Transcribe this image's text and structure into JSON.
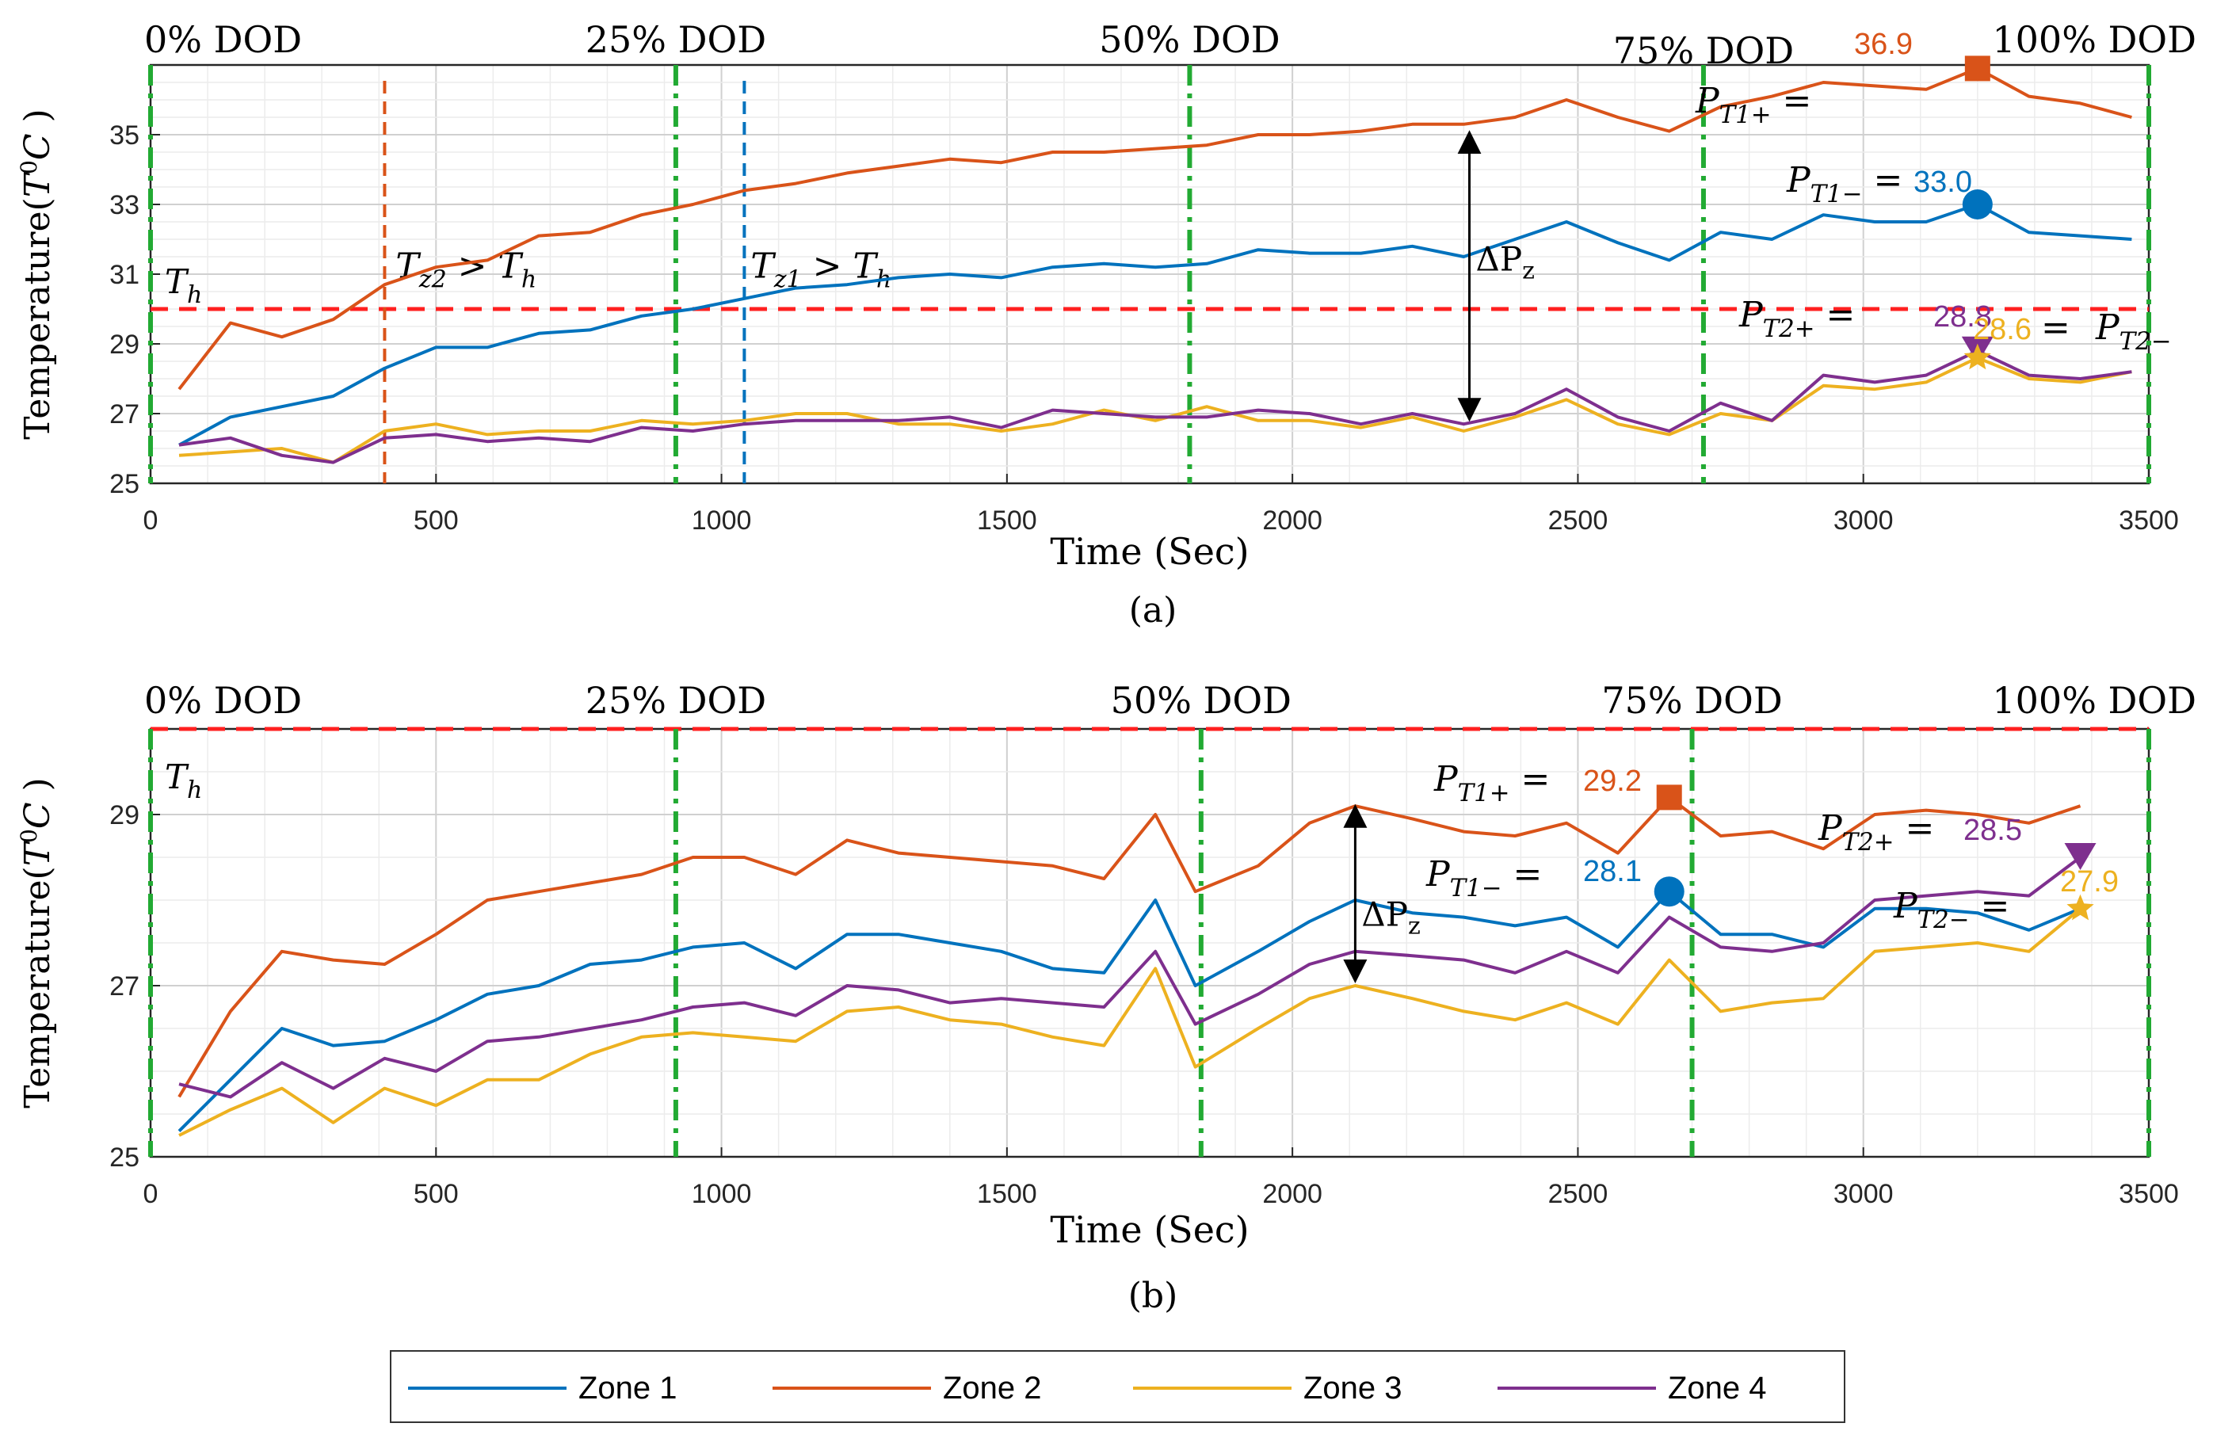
{
  "colors": {
    "zone1": "#0072BD",
    "zone2": "#D95319",
    "zone3": "#EDB120",
    "zone4": "#7E2F8E",
    "threshold": "#FF2020",
    "dod": "#22AA33",
    "grid": "#d9d9d9"
  },
  "legend": {
    "items": [
      {
        "label": "Zone 1",
        "color": "#0072BD"
      },
      {
        "label": "Zone 2",
        "color": "#D95319"
      },
      {
        "label": "Zone 3",
        "color": "#EDB120"
      },
      {
        "label": "Zone 4",
        "color": "#7E2F8E"
      }
    ]
  },
  "chart_data": [
    {
      "type": "line",
      "panel": "(a)",
      "caption": "(a)",
      "xlabel": "Time (Sec)",
      "ylabel": "Temperature(T°C )",
      "ylabel_parts": {
        "pre": "Temperature(",
        "T": "T",
        "sup": "0",
        "C": "C",
        "post": " )"
      },
      "xlim": [
        0,
        3500
      ],
      "ylim": [
        25,
        37
      ],
      "xticks": [
        0,
        500,
        1000,
        1500,
        2000,
        2500,
        3000,
        3500
      ],
      "yticks": [
        25,
        27,
        29,
        31,
        33,
        35
      ],
      "grid": true,
      "threshold": {
        "value": 30,
        "label": "T",
        "sub": "h"
      },
      "dod_lines": [
        0,
        920,
        1820,
        2720,
        3500
      ],
      "dod_labels": [
        {
          "text": "0% DOD",
          "x": 0
        },
        {
          "text": "25% DOD",
          "x": 920
        },
        {
          "text": "50% DOD",
          "x": 1820
        },
        {
          "text": "75% DOD",
          "x": 2720
        },
        {
          "text": "100% DOD",
          "x": 3500
        }
      ],
      "events": [
        {
          "x": 410,
          "color": "#D95319",
          "label": "T",
          "sub": "z2",
          "rest": " > T",
          "sub2": "h"
        },
        {
          "x": 1040,
          "color": "#0072BD",
          "label": "T",
          "sub": "z1",
          "rest": " > T",
          "sub2": "h"
        }
      ],
      "delta": {
        "x": 2310,
        "y_top": 35.2,
        "y_bottom": 26.7,
        "label": "ΔP",
        "sub": "z"
      },
      "x": [
        50,
        140,
        230,
        320,
        410,
        500,
        590,
        680,
        770,
        860,
        950,
        1040,
        1130,
        1220,
        1310,
        1400,
        1490,
        1580,
        1670,
        1760,
        1850,
        1940,
        2030,
        2120,
        2210,
        2300,
        2390,
        2480,
        2570,
        2660,
        2750,
        2840,
        2930,
        3020,
        3110,
        3200,
        3290,
        3380,
        3470
      ],
      "series": [
        {
          "name": "Zone 1",
          "color": "#0072BD",
          "values": [
            26.1,
            26.9,
            27.2,
            27.5,
            28.3,
            28.9,
            28.9,
            29.3,
            29.4,
            29.8,
            30.0,
            30.3,
            30.6,
            30.7,
            30.9,
            31.0,
            30.9,
            31.2,
            31.3,
            31.2,
            31.3,
            31.7,
            31.6,
            31.6,
            31.8,
            31.5,
            32.0,
            32.5,
            31.9,
            31.4,
            32.2,
            32.0,
            32.7,
            32.5,
            32.5,
            33.0,
            32.2,
            32.1,
            32.0
          ]
        },
        {
          "name": "Zone 2",
          "color": "#D95319",
          "values": [
            27.7,
            29.6,
            29.2,
            29.7,
            30.7,
            31.2,
            31.4,
            32.1,
            32.2,
            32.7,
            33.0,
            33.4,
            33.6,
            33.9,
            34.1,
            34.3,
            34.2,
            34.5,
            34.5,
            34.6,
            34.7,
            35.0,
            35.0,
            35.1,
            35.3,
            35.3,
            35.5,
            36.0,
            35.5,
            35.1,
            35.8,
            36.1,
            36.5,
            36.4,
            36.3,
            36.9,
            36.1,
            35.9,
            35.5
          ]
        },
        {
          "name": "Zone 3",
          "color": "#EDB120",
          "values": [
            25.8,
            25.9,
            26.0,
            25.6,
            26.5,
            26.7,
            26.4,
            26.5,
            26.5,
            26.8,
            26.7,
            26.8,
            27.0,
            27.0,
            26.7,
            26.7,
            26.5,
            26.7,
            27.1,
            26.8,
            27.2,
            26.8,
            26.8,
            26.6,
            26.9,
            26.5,
            26.9,
            27.4,
            26.7,
            26.4,
            27.0,
            26.8,
            27.8,
            27.7,
            27.9,
            28.6,
            28.0,
            27.9,
            28.2
          ]
        },
        {
          "name": "Zone 4",
          "color": "#7E2F8E",
          "values": [
            26.1,
            26.3,
            25.8,
            25.6,
            26.3,
            26.4,
            26.2,
            26.3,
            26.2,
            26.6,
            26.5,
            26.7,
            26.8,
            26.8,
            26.8,
            26.9,
            26.6,
            27.1,
            27.0,
            26.9,
            26.9,
            27.1,
            27.0,
            26.7,
            27.0,
            26.7,
            27.0,
            27.7,
            26.9,
            26.5,
            27.3,
            26.8,
            28.1,
            27.9,
            28.1,
            28.8,
            28.1,
            28.0,
            28.2
          ]
        }
      ],
      "points": [
        {
          "name": "P_T1+",
          "series": "Zone 2",
          "x": 3200,
          "y": 36.9,
          "value": "36.9",
          "marker": "square",
          "color": "#D95319",
          "label_main": "P",
          "label_sub": "T1+",
          "eq": " ="
        },
        {
          "name": "P_T1-",
          "series": "Zone 1",
          "x": 3200,
          "y": 33.0,
          "value": "33.0",
          "marker": "circle",
          "color": "#0072BD",
          "label_main": "P",
          "label_sub": "T1−",
          "eq": " ="
        },
        {
          "name": "P_T2+",
          "series": "Zone 4",
          "x": 3200,
          "y": 28.8,
          "value": "28.8",
          "marker": "triangle-down",
          "color": "#7E2F8E",
          "label_main": "P",
          "label_sub": "T2+",
          "eq": " ="
        },
        {
          "name": "P_T2-",
          "series": "Zone 3",
          "x": 3200,
          "y": 28.6,
          "value": "28.6",
          "marker": "star",
          "color": "#EDB120",
          "label_main": "P",
          "label_sub": "T2−",
          "eq": "= "
        }
      ]
    },
    {
      "type": "line",
      "panel": "(b)",
      "caption": "(b)",
      "xlabel": "Time (Sec)",
      "ylabel": "Temperature(T°C )",
      "ylabel_parts": {
        "pre": "Temperature(",
        "T": "T",
        "sup": "0",
        "C": "C",
        "post": " )"
      },
      "xlim": [
        0,
        3500
      ],
      "ylim": [
        25,
        30
      ],
      "xticks": [
        0,
        500,
        1000,
        1500,
        2000,
        2500,
        3000,
        3500
      ],
      "yticks": [
        25,
        27,
        29
      ],
      "grid": true,
      "threshold": {
        "value": 30,
        "label": "T",
        "sub": "h"
      },
      "dod_lines": [
        0,
        920,
        1840,
        2700,
        3500
      ],
      "dod_labels": [
        {
          "text": "0% DOD",
          "x": 0
        },
        {
          "text": "25% DOD",
          "x": 920
        },
        {
          "text": "50% DOD",
          "x": 1840
        },
        {
          "text": "75% DOD",
          "x": 2700
        },
        {
          "text": "100% DOD",
          "x": 3500
        }
      ],
      "delta": {
        "x": 2110,
        "y_top": 29.15,
        "y_bottom": 27.0,
        "label": "ΔP",
        "sub": "z"
      },
      "x": [
        50,
        140,
        230,
        320,
        410,
        500,
        590,
        680,
        770,
        860,
        950,
        1040,
        1130,
        1220,
        1310,
        1400,
        1490,
        1580,
        1670,
        1760,
        1830,
        1940,
        2030,
        2110,
        2210,
        2300,
        2390,
        2480,
        2570,
        2660,
        2750,
        2840,
        2930,
        3020,
        3110,
        3200,
        3290,
        3380
      ],
      "series": [
        {
          "name": "Zone 1",
          "color": "#0072BD",
          "values": [
            25.3,
            25.9,
            26.5,
            26.3,
            26.35,
            26.6,
            26.9,
            27.0,
            27.25,
            27.3,
            27.45,
            27.5,
            27.2,
            27.6,
            27.6,
            27.5,
            27.4,
            27.2,
            27.15,
            28.0,
            27.0,
            27.4,
            27.75,
            28.0,
            27.85,
            27.8,
            27.7,
            27.8,
            27.45,
            28.1,
            27.6,
            27.6,
            27.45,
            27.9,
            27.9,
            27.85,
            27.65,
            27.9
          ]
        },
        {
          "name": "Zone 2",
          "color": "#D95319",
          "values": [
            25.7,
            26.7,
            27.4,
            27.3,
            27.25,
            27.6,
            28.0,
            28.1,
            28.2,
            28.3,
            28.5,
            28.5,
            28.3,
            28.7,
            28.55,
            28.5,
            28.45,
            28.4,
            28.25,
            29.0,
            28.1,
            28.4,
            28.9,
            29.1,
            28.95,
            28.8,
            28.75,
            28.9,
            28.55,
            29.2,
            28.75,
            28.8,
            28.6,
            29.0,
            29.05,
            29.0,
            28.9,
            29.1
          ]
        },
        {
          "name": "Zone 3",
          "color": "#EDB120",
          "values": [
            25.25,
            25.55,
            25.8,
            25.4,
            25.8,
            25.6,
            25.9,
            25.9,
            26.2,
            26.4,
            26.45,
            26.4,
            26.35,
            26.7,
            26.75,
            26.6,
            26.55,
            26.4,
            26.3,
            27.2,
            26.05,
            26.5,
            26.85,
            27.0,
            26.85,
            26.7,
            26.6,
            26.8,
            26.55,
            27.3,
            26.7,
            26.8,
            26.85,
            27.4,
            27.45,
            27.5,
            27.4,
            27.9
          ]
        },
        {
          "name": "Zone 4",
          "color": "#7E2F8E",
          "values": [
            25.85,
            25.7,
            26.1,
            25.8,
            26.15,
            26.0,
            26.35,
            26.4,
            26.5,
            26.6,
            26.75,
            26.8,
            26.65,
            27.0,
            26.95,
            26.8,
            26.85,
            26.8,
            26.75,
            27.4,
            26.55,
            26.9,
            27.25,
            27.4,
            27.35,
            27.3,
            27.15,
            27.4,
            27.15,
            27.8,
            27.45,
            27.4,
            27.5,
            28.0,
            28.05,
            28.1,
            28.05,
            28.5
          ]
        }
      ],
      "points": [
        {
          "name": "P_T1+",
          "series": "Zone 2",
          "x": 2660,
          "y": 29.2,
          "value": "29.2",
          "marker": "square",
          "color": "#D95319",
          "label_main": "P",
          "label_sub": "T1+",
          "eq": " ="
        },
        {
          "name": "P_T1-",
          "series": "Zone 1",
          "x": 2660,
          "y": 28.1,
          "value": "28.1",
          "marker": "circle",
          "color": "#0072BD",
          "label_main": "P",
          "label_sub": "T1−",
          "eq": " ="
        },
        {
          "name": "P_T2+",
          "series": "Zone 4",
          "x": 3380,
          "y": 28.5,
          "value": "28.5",
          "marker": "triangle-down",
          "color": "#7E2F8E",
          "label_main": "P",
          "label_sub": "T2+",
          "eq": " ="
        },
        {
          "name": "P_T2-",
          "series": "Zone 3",
          "x": 3380,
          "y": 27.9,
          "value": "27.9",
          "marker": "star",
          "color": "#EDB120",
          "label_main": "P",
          "label_sub": "T2−",
          "eq": " ="
        }
      ]
    }
  ]
}
